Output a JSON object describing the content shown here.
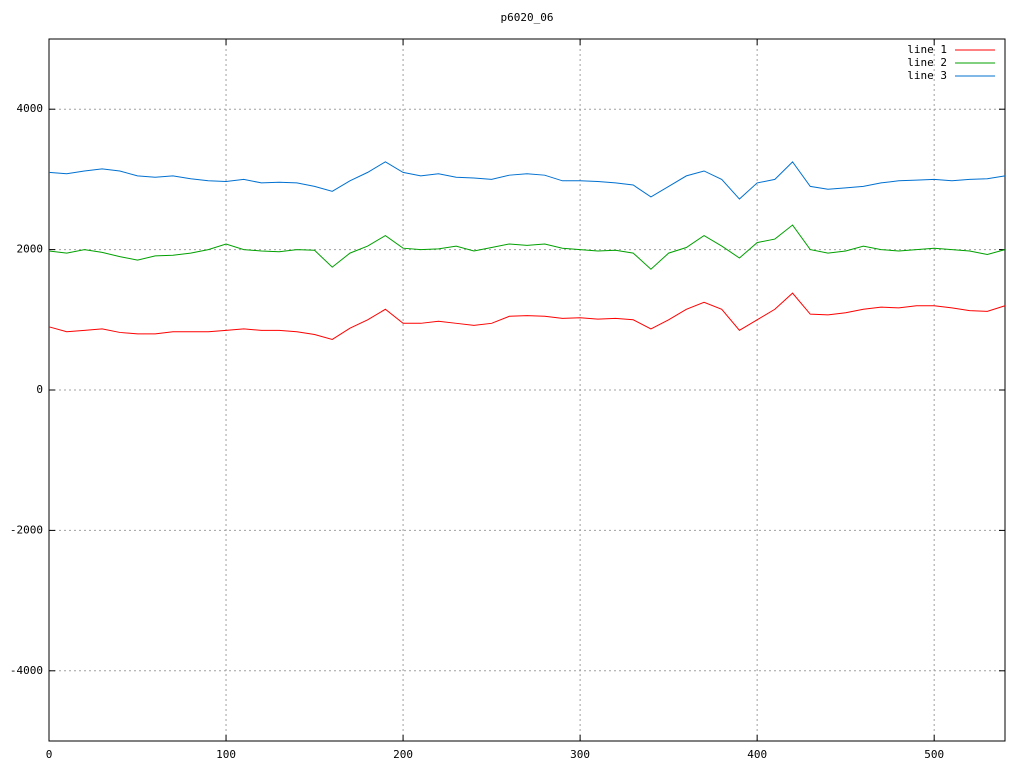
{
  "chart_data": {
    "type": "line",
    "title": "p6020_06",
    "x": [
      0,
      10,
      20,
      30,
      40,
      50,
      60,
      70,
      80,
      90,
      100,
      110,
      120,
      130,
      140,
      150,
      160,
      170,
      180,
      190,
      200,
      210,
      220,
      230,
      240,
      250,
      260,
      270,
      280,
      290,
      300,
      310,
      320,
      330,
      340,
      350,
      360,
      370,
      380,
      390,
      400,
      410,
      420,
      430,
      440,
      450,
      460,
      470,
      480,
      490,
      500,
      510,
      520,
      530,
      540
    ],
    "series": [
      {
        "name": "line 1",
        "color": "#ff0000",
        "values": [
          900,
          830,
          850,
          870,
          820,
          800,
          800,
          830,
          830,
          830,
          850,
          870,
          850,
          850,
          830,
          790,
          720,
          880,
          1000,
          1150,
          950,
          950,
          980,
          950,
          920,
          950,
          1050,
          1060,
          1050,
          1020,
          1030,
          1010,
          1020,
          1000,
          870,
          1000,
          1150,
          1250,
          1150,
          850,
          1000,
          1150,
          1380,
          1080,
          1070,
          1100,
          1150,
          1180,
          1170,
          1200,
          1200,
          1170,
          1130,
          1120,
          1200
        ]
      },
      {
        "name": "line 2",
        "color": "#00a000",
        "values": [
          1980,
          1950,
          2000,
          1960,
          1900,
          1850,
          1910,
          1920,
          1950,
          2000,
          2080,
          2000,
          1980,
          1970,
          2000,
          1990,
          1750,
          1950,
          2050,
          2200,
          2020,
          2000,
          2010,
          2050,
          1980,
          2030,
          2080,
          2060,
          2080,
          2020,
          2000,
          1980,
          1990,
          1950,
          1720,
          1950,
          2030,
          2200,
          2050,
          1880,
          2100,
          2150,
          2350,
          2000,
          1950,
          1980,
          2050,
          2000,
          1980,
          2000,
          2020,
          2000,
          1980,
          1930,
          2000
        ]
      },
      {
        "name": "line 3",
        "color": "#0070d0",
        "values": [
          3100,
          3080,
          3120,
          3150,
          3120,
          3050,
          3030,
          3050,
          3010,
          2980,
          2970,
          3000,
          2950,
          2960,
          2950,
          2900,
          2830,
          2980,
          3100,
          3250,
          3100,
          3050,
          3080,
          3030,
          3020,
          3000,
          3060,
          3080,
          3060,
          2980,
          2980,
          2970,
          2950,
          2920,
          2750,
          2900,
          3050,
          3120,
          3000,
          2720,
          2950,
          3000,
          3250,
          2900,
          2860,
          2880,
          2900,
          2950,
          2980,
          2990,
          3000,
          2980,
          3000,
          3010,
          3050
        ]
      }
    ],
    "xlim": [
      0,
      540
    ],
    "ylim": [
      -5000,
      5000
    ],
    "xticks": [
      0,
      100,
      200,
      300,
      400,
      500
    ],
    "yticks": [
      -4000,
      -2000,
      0,
      2000,
      4000
    ],
    "grid": true,
    "legend": "top-right"
  }
}
